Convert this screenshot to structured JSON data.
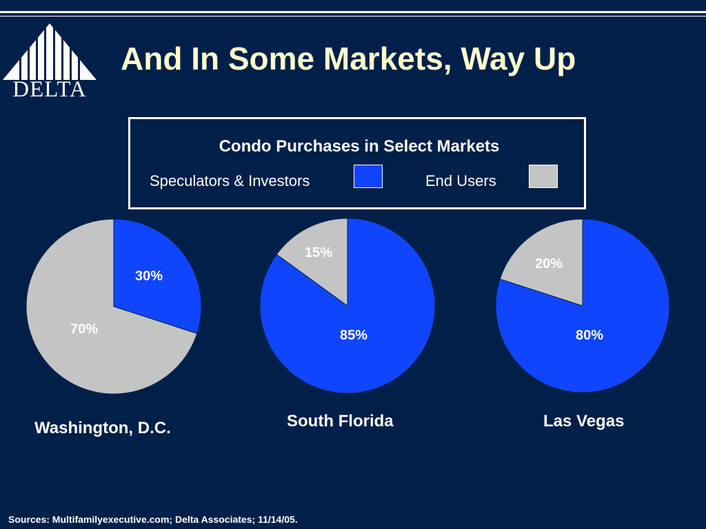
{
  "slide": {
    "title": "And In Some Markets, Way Up",
    "logo_text": "DELTA",
    "sources": "Sources:  Multifamilyexecutive.com; Delta Associates; 11/14/05."
  },
  "legend": {
    "title": "Condo Purchases in Select Markets",
    "items": [
      {
        "label": "Speculators & Investors",
        "color": "#1045ff"
      },
      {
        "label": "End Users",
        "color": "#c4c4c4"
      }
    ]
  },
  "colors": {
    "background": "#00204a",
    "title": "#ffffcc",
    "speculators": "#1045ff",
    "end_users": "#c4c4c4"
  },
  "chart_data": [
    {
      "type": "pie",
      "title": "Washington, D.C.",
      "categories": [
        "Speculators & Investors",
        "End Users"
      ],
      "values": [
        30,
        70
      ],
      "labels": [
        "30%",
        "70%"
      ]
    },
    {
      "type": "pie",
      "title": "South Florida",
      "categories": [
        "Speculators & Investors",
        "End Users"
      ],
      "values": [
        85,
        15
      ],
      "labels": [
        "85%",
        "15%"
      ]
    },
    {
      "type": "pie",
      "title": "Las Vegas",
      "categories": [
        "Speculators & Investors",
        "End Users"
      ],
      "values": [
        80,
        20
      ],
      "labels": [
        "80%",
        "20%"
      ]
    }
  ]
}
